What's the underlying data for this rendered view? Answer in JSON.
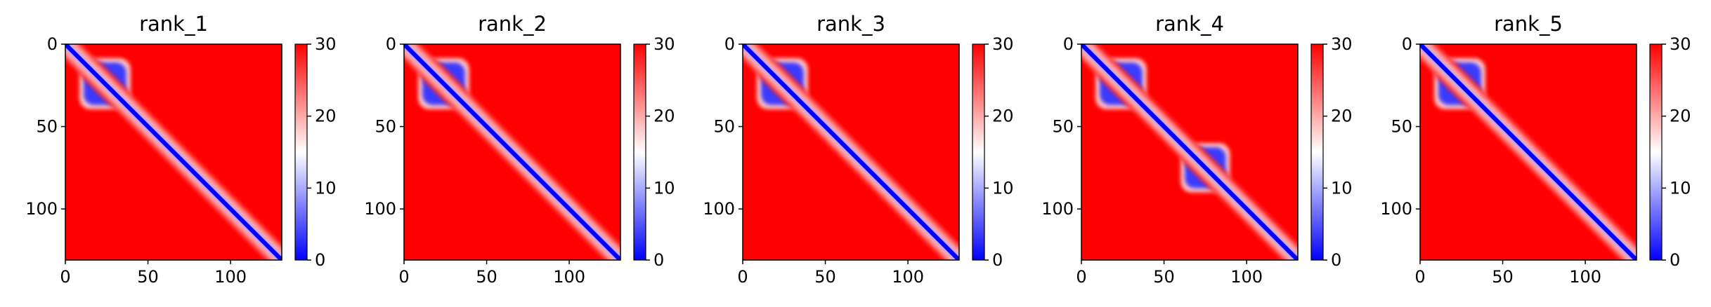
{
  "figure": {
    "background": "#ffffff"
  },
  "chart_data": [
    {
      "type": "heatmap",
      "title": "rank_1",
      "xlabel": "",
      "ylabel": "",
      "xlim": [
        0,
        131
      ],
      "ylim": [
        131,
        0
      ],
      "x_ticks": [
        0,
        50,
        100
      ],
      "y_ticks": [
        0,
        50,
        100
      ],
      "colorbar": {
        "min": 0,
        "max": 30,
        "ticks": [
          0,
          10,
          20,
          30
        ],
        "colormap": "bwr",
        "colors": [
          "#0000ff",
          "#ffffff",
          "#ff0000"
        ]
      },
      "features": {
        "diagonal_band": true,
        "domain_blocks": [
          [
            15,
            42,
            24
          ]
        ]
      }
    },
    {
      "type": "heatmap",
      "title": "rank_2",
      "xlabel": "",
      "ylabel": "",
      "xlim": [
        0,
        131
      ],
      "ylim": [
        131,
        0
      ],
      "x_ticks": [
        0,
        50,
        100
      ],
      "y_ticks": [
        0,
        50,
        100
      ],
      "colorbar": {
        "min": 0,
        "max": 30,
        "ticks": [
          0,
          10,
          20,
          30
        ],
        "colormap": "bwr",
        "colors": [
          "#0000ff",
          "#ffffff",
          "#ff0000"
        ]
      },
      "features": {
        "diagonal_band": true,
        "domain_blocks": [
          [
            15,
            42,
            24
          ]
        ]
      }
    },
    {
      "type": "heatmap",
      "title": "rank_3",
      "xlabel": "",
      "ylabel": "",
      "xlim": [
        0,
        131
      ],
      "ylim": [
        131,
        0
      ],
      "x_ticks": [
        0,
        50,
        100
      ],
      "y_ticks": [
        0,
        50,
        100
      ],
      "colorbar": {
        "min": 0,
        "max": 30,
        "ticks": [
          0,
          10,
          20,
          30
        ],
        "colormap": "bwr",
        "colors": [
          "#0000ff",
          "#ffffff",
          "#ff0000"
        ]
      },
      "features": {
        "diagonal_band": true,
        "domain_blocks": [
          [
            15,
            42,
            24
          ]
        ]
      }
    },
    {
      "type": "heatmap",
      "title": "rank_4",
      "xlabel": "",
      "ylabel": "",
      "xlim": [
        0,
        131
      ],
      "ylim": [
        131,
        0
      ],
      "x_ticks": [
        0,
        50,
        100
      ],
      "y_ticks": [
        0,
        50,
        100
      ],
      "colorbar": {
        "min": 0,
        "max": 30,
        "ticks": [
          0,
          10,
          20,
          30
        ],
        "colormap": "bwr",
        "colors": [
          "#0000ff",
          "#ffffff",
          "#ff0000"
        ]
      },
      "features": {
        "diagonal_band": true,
        "domain_blocks": [
          [
            15,
            42,
            24
          ],
          [
            62,
            88,
            75
          ]
        ]
      }
    },
    {
      "type": "heatmap",
      "title": "rank_5",
      "xlabel": "",
      "ylabel": "",
      "xlim": [
        0,
        131
      ],
      "ylim": [
        131,
        0
      ],
      "x_ticks": [
        0,
        50,
        100
      ],
      "y_ticks": [
        0,
        50,
        100
      ],
      "colorbar": {
        "min": 0,
        "max": 30,
        "ticks": [
          0,
          10,
          20,
          30
        ],
        "colormap": "bwr",
        "colors": [
          "#0000ff",
          "#ffffff",
          "#ff0000"
        ]
      },
      "features": {
        "diagonal_band": true,
        "domain_blocks": [
          [
            15,
            42,
            24
          ]
        ]
      }
    }
  ]
}
